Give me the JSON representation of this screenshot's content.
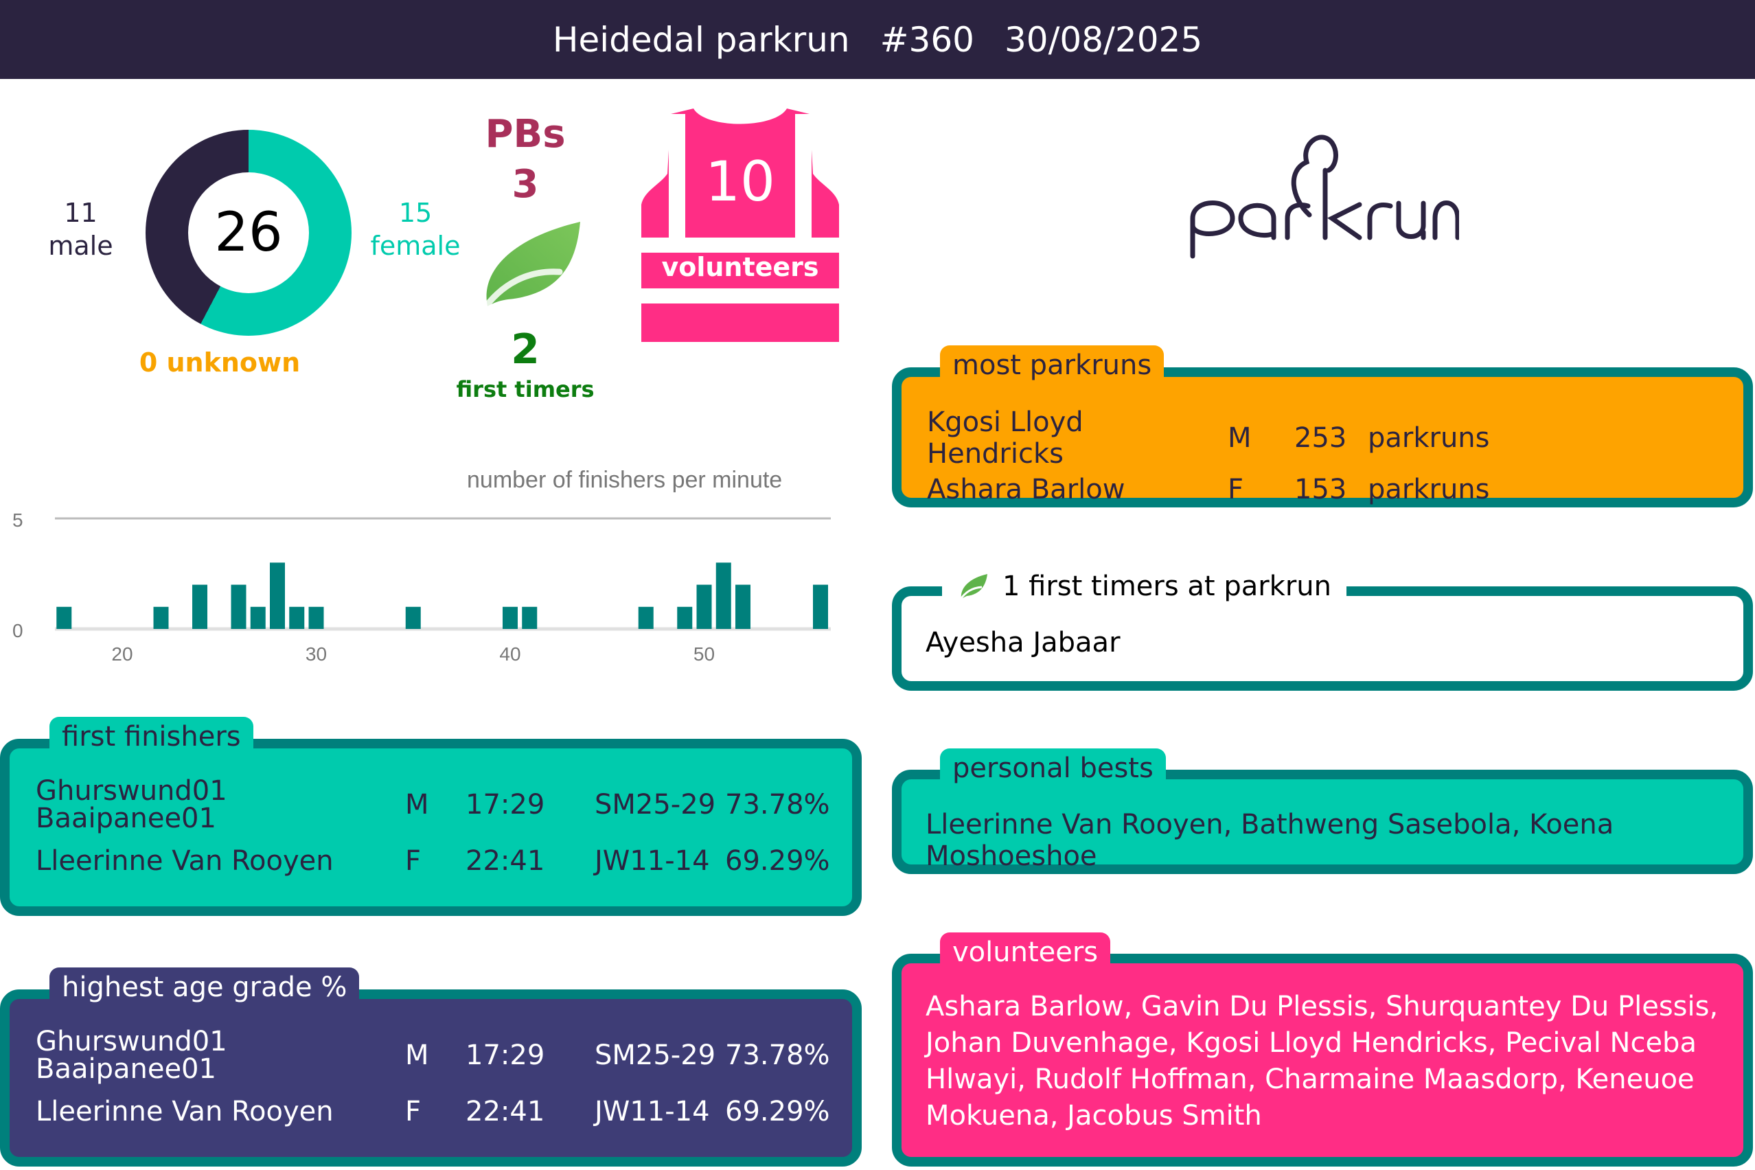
{
  "header": {
    "event_name": "Heidedal parkrun",
    "event_number": "#360",
    "date": "30/08/2025"
  },
  "summary": {
    "total_finishers": "26",
    "male_count": "11",
    "male_label": "male",
    "female_count": "15",
    "female_label": "female",
    "unknown_text": "0 unknown",
    "pbs_label": "PBs",
    "pbs_count": "3",
    "first_timers_count": "2",
    "first_timers_label": "first timers",
    "volunteers_count": "10",
    "volunteers_label": "volunteers"
  },
  "colors": {
    "header_bg": "#2b2340",
    "male": "#2b2340",
    "female": "#00cbad",
    "unknown": "#f8a300",
    "pbs": "#a8305a",
    "first_timers": "#0d7d10",
    "volunteers": "#ff2d85",
    "box_border": "#00807c",
    "most_parkruns": "#fea300",
    "age_grade": "#3e3d76",
    "bar": "#00807c"
  },
  "logo": {
    "text": "parkrun"
  },
  "chart_data": {
    "type": "bar",
    "title": "number of finishers per minute",
    "xlabel": "",
    "ylabel": "",
    "x": [
      17,
      22,
      24,
      26,
      27,
      28,
      29,
      30,
      35,
      40,
      41,
      47,
      49,
      50,
      51,
      52,
      56
    ],
    "values": [
      1,
      1,
      2,
      2,
      1,
      3,
      1,
      1,
      1,
      1,
      1,
      1,
      1,
      2,
      3,
      2,
      2
    ],
    "xlim": [
      16.5,
      57
    ],
    "ylim": [
      0,
      5
    ],
    "xticks": [
      "20",
      "30",
      "40",
      "50"
    ],
    "yticks": [
      "0",
      "5"
    ],
    "grid": true,
    "legend": "none"
  },
  "first_finishers": {
    "title": "first finishers",
    "rows": [
      {
        "name": "Ghurswund01 Baaipanee01",
        "gender": "M",
        "time": "17:29",
        "category": "SM25-29",
        "age_grade": "73.78%"
      },
      {
        "name": "Lleerinne Van Rooyen",
        "gender": "F",
        "time": "22:41",
        "category": "JW11-14",
        "age_grade": "69.29%"
      }
    ]
  },
  "highest_age_grade": {
    "title": "highest age grade %",
    "rows": [
      {
        "name": "Ghurswund01 Baaipanee01",
        "gender": "M",
        "time": "17:29",
        "category": "SM25-29",
        "age_grade": "73.78%"
      },
      {
        "name": "Lleerinne Van Rooyen",
        "gender": "F",
        "time": "22:41",
        "category": "JW11-14",
        "age_grade": "69.29%"
      }
    ]
  },
  "most_parkruns": {
    "title": "most parkruns",
    "rows": [
      {
        "name": "Kgosi Lloyd Hendricks",
        "gender": "M",
        "count": "253",
        "unit": "parkruns"
      },
      {
        "name": "Ashara Barlow",
        "gender": "F",
        "count": "153",
        "unit": "parkruns"
      }
    ]
  },
  "first_timers_at_parkrun": {
    "title": "1 first timers at parkrun",
    "icon": "leaf-icon",
    "names": "Ayesha Jabaar"
  },
  "personal_bests": {
    "title": "personal bests",
    "names": "Lleerinne Van Rooyen, Bathweng Sasebola, Koena Moshoeshoe"
  },
  "volunteers": {
    "title": "volunteers",
    "names": "Ashara Barlow, Gavin Du Plessis, Shurquantey Du Plessis, Johan Duvenhage, Kgosi Lloyd Hendricks, Pecival Nceba Hlwayi, Rudolf Hoffman, Charmaine Maasdorp, Keneuoe Mokuena, Jacobus Smith"
  }
}
